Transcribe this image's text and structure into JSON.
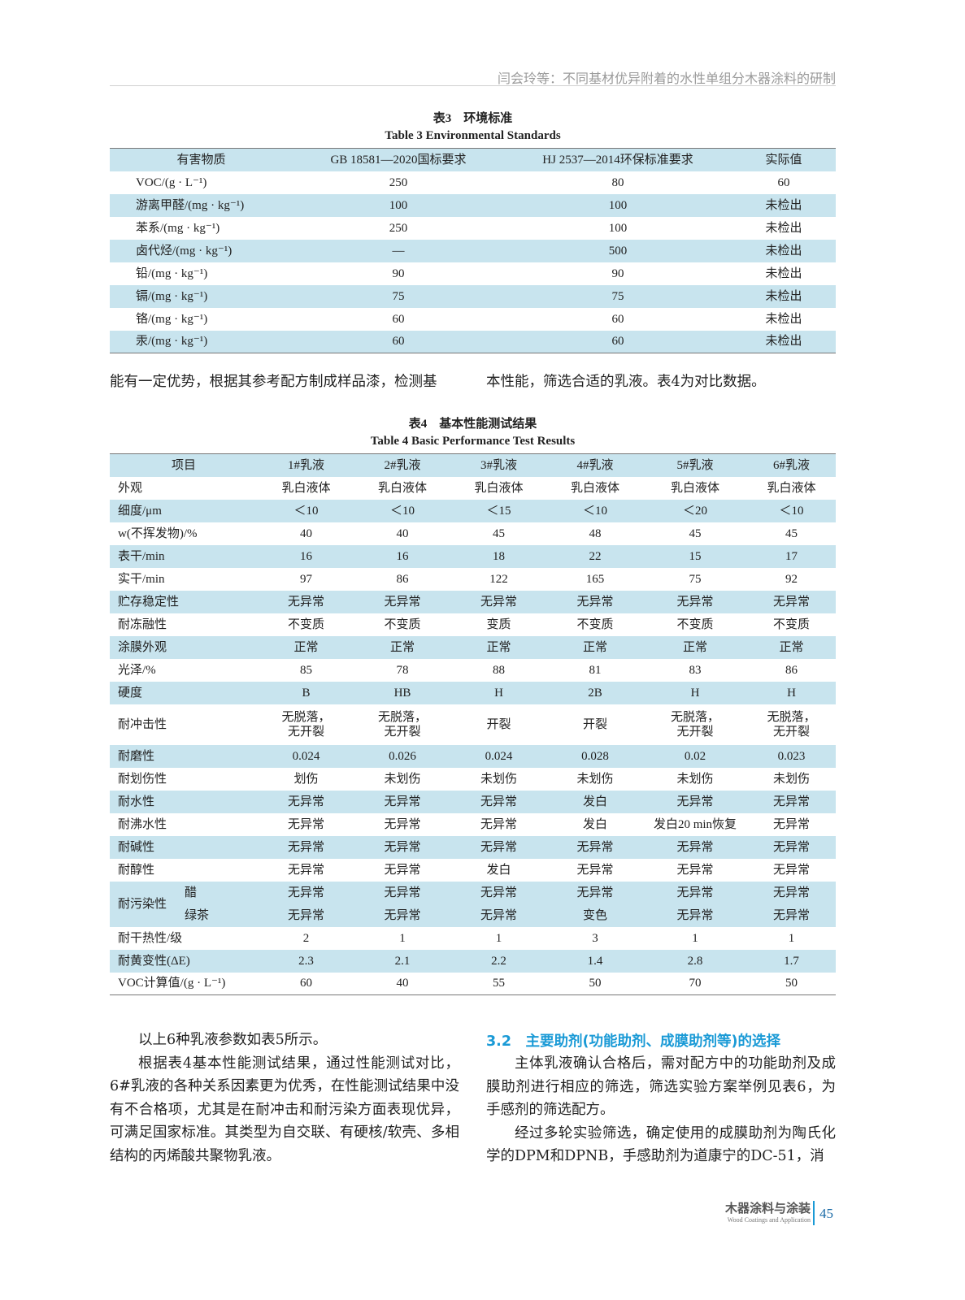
{
  "header": {
    "running_title": "闫会玲等：不同基材优异附着的水性单组分木器涂料的研制"
  },
  "table3": {
    "caption_cn": "表3　环境标准",
    "caption_en": "Table 3   Environmental Standards",
    "columns": [
      "有害物质",
      "GB 18581—2020国标要求",
      "HJ 2537—2014环保标准要求",
      "实际值"
    ],
    "rows": [
      [
        "VOC/(g · L⁻¹)",
        "250",
        "80",
        "60"
      ],
      [
        "游离甲醛/(mg · kg⁻¹)",
        "100",
        "100",
        "未检出"
      ],
      [
        "苯系/(mg · kg⁻¹)",
        "250",
        "100",
        "未检出"
      ],
      [
        "卤代烃/(mg · kg⁻¹)",
        "—",
        "500",
        "未检出"
      ],
      [
        "铅/(mg · kg⁻¹)",
        "90",
        "90",
        "未检出"
      ],
      [
        "镉/(mg · kg⁻¹)",
        "75",
        "75",
        "未检出"
      ],
      [
        "铬/(mg · kg⁻¹)",
        "60",
        "60",
        "未检出"
      ],
      [
        "汞/(mg · kg⁻¹)",
        "60",
        "60",
        "未检出"
      ]
    ]
  },
  "mid_text": {
    "left": "能有一定优势，根据其参考配方制成样品漆，检测基",
    "right": "本性能，筛选合适的乳液。表4为对比数据。"
  },
  "table4": {
    "caption_cn": "表4　基本性能测试结果",
    "caption_en": "Table 4   Basic Performance Test Results",
    "columns": [
      "项目",
      "1#乳液",
      "2#乳液",
      "3#乳液",
      "4#乳液",
      "5#乳液",
      "6#乳液"
    ],
    "rows": [
      [
        "外观",
        "乳白液体",
        "乳白液体",
        "乳白液体",
        "乳白液体",
        "乳白液体",
        "乳白液体"
      ],
      [
        "细度/μm",
        "＜10",
        "＜10",
        "＜15",
        "＜10",
        "＜20",
        "＜10"
      ],
      [
        "w(不挥发物)/%",
        "40",
        "40",
        "45",
        "48",
        "45",
        "45"
      ],
      [
        "表干/min",
        "16",
        "16",
        "18",
        "22",
        "15",
        "17"
      ],
      [
        "实干/min",
        "97",
        "86",
        "122",
        "165",
        "75",
        "92"
      ],
      [
        "贮存稳定性",
        "无异常",
        "无异常",
        "无异常",
        "无异常",
        "无异常",
        "无异常"
      ],
      [
        "耐冻融性",
        "不变质",
        "不变质",
        "变质",
        "不变质",
        "不变质",
        "不变质"
      ],
      [
        "涂膜外观",
        "正常",
        "正常",
        "正常",
        "正常",
        "正常",
        "正常"
      ],
      [
        "光泽/%",
        "85",
        "78",
        "88",
        "81",
        "83",
        "86"
      ],
      [
        "硬度",
        "B",
        "HB",
        "H",
        "2B",
        "H",
        "H"
      ],
      [
        "耐冲击性",
        "无脱落，\n无开裂",
        "无脱落，\n无开裂",
        "开裂",
        "开裂",
        "无脱落，\n无开裂",
        "无脱落，\n无开裂"
      ],
      [
        "耐磨性",
        "0.024",
        "0.026",
        "0.024",
        "0.028",
        "0.02",
        "0.023"
      ],
      [
        "耐划伤性",
        "划伤",
        "未划伤",
        "未划伤",
        "未划伤",
        "未划伤",
        "未划伤"
      ],
      [
        "耐水性",
        "无异常",
        "无异常",
        "无异常",
        "发白",
        "无异常",
        "无异常"
      ],
      [
        "耐沸水性",
        "无异常",
        "无异常",
        "无异常",
        "发白",
        "发白20 min恢复",
        "无异常"
      ],
      [
        "耐碱性",
        "无异常",
        "无异常",
        "无异常",
        "无异常",
        "无异常",
        "无异常"
      ],
      [
        "耐醇性",
        "无异常",
        "无异常",
        "发白",
        "无异常",
        "无异常",
        "无异常"
      ]
    ],
    "stain": {
      "label": "耐污染性",
      "rows": [
        [
          "醋",
          "无异常",
          "无异常",
          "无异常",
          "无异常",
          "无异常",
          "无异常"
        ],
        [
          "绿茶",
          "无异常",
          "无异常",
          "无异常",
          "变色",
          "无异常",
          "无异常"
        ]
      ]
    },
    "rows_after": [
      [
        "耐干热性/级",
        "2",
        "1",
        "1",
        "3",
        "1",
        "1"
      ],
      [
        "耐黄变性(ΔE)",
        "2.3",
        "2.1",
        "2.2",
        "1.4",
        "2.8",
        "1.7"
      ],
      [
        "VOC计算值/(g · L⁻¹)",
        "60",
        "40",
        "55",
        "50",
        "70",
        "50"
      ]
    ]
  },
  "left_col": {
    "paragraphs": [
      "以上6种乳液参数如表5所示。",
      "根据表4基本性能测试结果，通过性能测试对比，6#乳液的各种关系因素更为优秀，在性能测试结果中没有不合格项，尤其是在耐冲击和耐污染方面表现优异，可满足国家标准。其类型为自交联、有硬核/软壳、多相结构的丙烯酸共聚物乳液。"
    ]
  },
  "right_col": {
    "heading": "3.2　主要助剂(功能助剂、成膜助剂等)的选择",
    "paragraphs": [
      "主体乳液确认合格后，需对配方中的功能助剂及成膜助剂进行相应的筛选，筛选实验方案举例见表6，为手感剂的筛选配方。",
      "经过多轮实验筛选，确定使用的成膜助剂为陶氏化学的DPM和DPNB，手感助剂为道康宁的DC-51，消"
    ]
  },
  "footer": {
    "journal_cn": "木器涂料与涂装",
    "journal_en": "Wood Coatings and Application",
    "page": "45"
  },
  "colors": {
    "table_band": "#c8e4ee",
    "accent": "#1a9ad6"
  }
}
